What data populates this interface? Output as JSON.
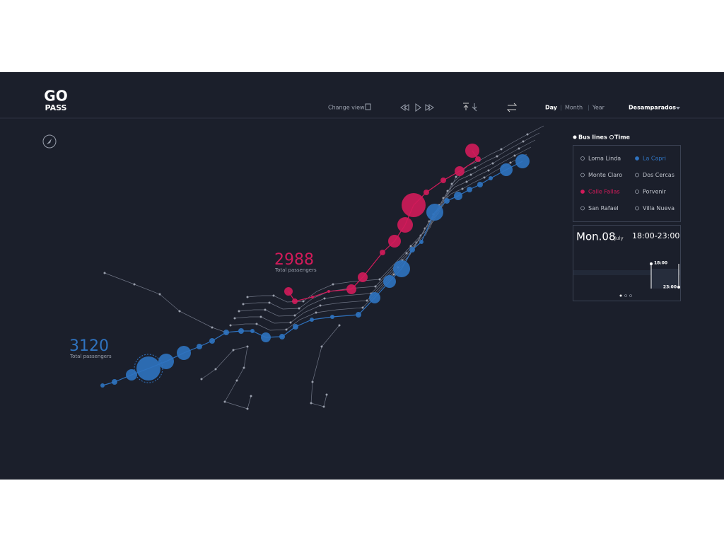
{
  "header": {
    "logo_top": "GO",
    "logo_bottom": "PASS",
    "change_view": "Change view",
    "periods": [
      "Day",
      "Month",
      "Year"
    ],
    "location": "Desamparados"
  },
  "filters": {
    "modes": [
      "Bus lines",
      "Time"
    ],
    "bus_lines": [
      "Loma Linda",
      "La Capri",
      "Monte Claro",
      "Dos Cercas",
      "Calle Fallas",
      "Porvenir",
      "San Rafael",
      "Villa Nueva"
    ]
  },
  "time_panel": {
    "day": "Mon.08",
    "month": "July",
    "range": "18:00-23:00",
    "start": "18:00",
    "end": "23:00"
  },
  "callouts": [
    {
      "value": "2988",
      "label": "Total passengers"
    },
    {
      "value": "3120",
      "label": "Total passengers"
    }
  ]
}
